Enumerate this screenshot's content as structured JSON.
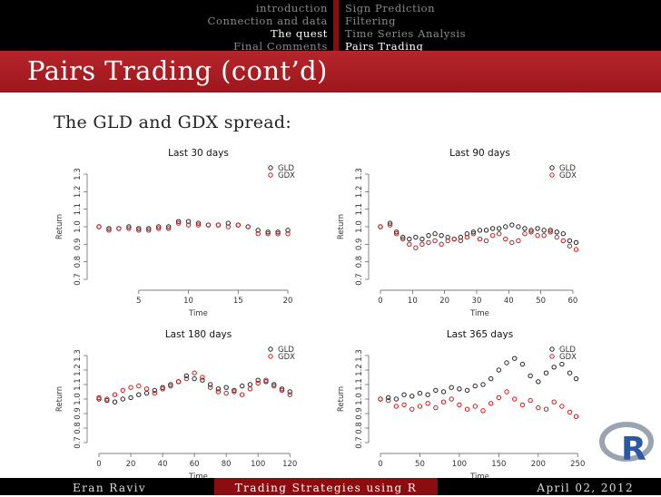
{
  "nav": {
    "sections": [
      "introduction",
      "Connection and data",
      "The quest",
      "Final Comments"
    ],
    "active_section": 2,
    "subsections": [
      "Sign Prediction",
      "Filtering",
      "Time Series Analysis",
      "Pairs Trading"
    ],
    "active_subsection": 3
  },
  "frame_title": "Pairs Trading (cont’d)",
  "subtitle": "The GLD and GDX spread:",
  "footer": {
    "author": "Eran Raviv",
    "talk_title": "Trading Strategies using R",
    "date": "April 02, 2012"
  },
  "logo_text": "R",
  "colors": {
    "nav_bg": "#000000",
    "title_bar": "#a81e23",
    "accent": "#8b0d10",
    "gld": "#222222",
    "gdx": "#d01818"
  },
  "chart_data": [
    {
      "type": "scatter",
      "title": "Last 30 days",
      "xlabel": "Time",
      "ylabel": "Return",
      "xlim": [
        1,
        21
      ],
      "xticks": [
        5,
        10,
        15,
        20
      ],
      "ylim": [
        0.7,
        1.3
      ],
      "yticks": [
        "0.7",
        "0.8",
        "0.9",
        "1.0",
        "1.1",
        "1.2",
        "1.3"
      ],
      "legend_position": "top-right",
      "series": [
        {
          "name": "GLD",
          "color": "#222222",
          "values": [
            1.0,
            0.99,
            0.99,
            1.0,
            0.99,
            0.99,
            1.0,
            1.0,
            1.03,
            1.03,
            1.02,
            1.01,
            1.01,
            1.02,
            1.01,
            1.0,
            0.98,
            0.97,
            0.97,
            0.98
          ]
        },
        {
          "name": "GDX",
          "color": "#d01818",
          "values": [
            1.0,
            0.98,
            0.99,
            0.99,
            0.98,
            0.98,
            0.99,
            0.99,
            1.02,
            1.01,
            1.01,
            1.01,
            1.01,
            1.0,
            1.01,
            1.0,
            0.96,
            0.96,
            0.96,
            0.96
          ]
        }
      ]
    },
    {
      "type": "scatter",
      "title": "Last 90 days",
      "xlabel": "Time",
      "ylabel": "Return",
      "xlim": [
        0,
        62
      ],
      "xticks": [
        0,
        10,
        20,
        30,
        40,
        50,
        60
      ],
      "ylim": [
        0.7,
        1.3
      ],
      "yticks": [
        "0.7",
        "0.8",
        "0.9",
        "1.0",
        "1.1",
        "1.2",
        "1.3"
      ],
      "legend_position": "top-right",
      "series": [
        {
          "name": "GLD",
          "color": "#222222",
          "x": [
            0,
            3,
            5,
            7,
            9,
            11,
            13,
            15,
            17,
            19,
            21,
            23,
            25,
            27,
            29,
            31,
            33,
            35,
            37,
            39,
            41,
            43,
            45,
            47,
            49,
            51,
            53,
            55,
            57,
            59,
            61
          ],
          "values": [
            1.0,
            1.02,
            0.97,
            0.94,
            0.93,
            0.94,
            0.93,
            0.95,
            0.96,
            0.95,
            0.94,
            0.93,
            0.94,
            0.96,
            0.97,
            0.98,
            0.98,
            0.99,
            0.99,
            1.0,
            1.01,
            1.0,
            0.99,
            0.98,
            0.99,
            0.98,
            0.98,
            0.97,
            0.96,
            0.92,
            0.91
          ]
        },
        {
          "name": "GDX",
          "color": "#d01818",
          "x": [
            0,
            3,
            5,
            7,
            9,
            11,
            13,
            15,
            17,
            19,
            21,
            23,
            25,
            27,
            29,
            31,
            33,
            35,
            37,
            39,
            41,
            43,
            45,
            47,
            49,
            51,
            53,
            55,
            57,
            59,
            61
          ],
          "values": [
            1.0,
            1.01,
            0.96,
            0.93,
            0.9,
            0.88,
            0.9,
            0.91,
            0.92,
            0.9,
            0.92,
            0.93,
            0.92,
            0.94,
            0.96,
            0.93,
            0.92,
            0.95,
            0.96,
            0.93,
            0.91,
            0.92,
            0.96,
            0.97,
            0.95,
            0.95,
            0.97,
            0.94,
            0.92,
            0.89,
            0.87
          ]
        }
      ]
    },
    {
      "type": "scatter",
      "title": "Last 180 days",
      "xlabel": "Time",
      "ylabel": "Return",
      "xlim": [
        0,
        125
      ],
      "xticks": [
        0,
        20,
        40,
        60,
        80,
        100,
        120
      ],
      "ylim": [
        0.7,
        1.3
      ],
      "yticks": [
        "0.7",
        "0.8",
        "0.9",
        "1.0",
        "1.1",
        "1.2",
        "1.3"
      ],
      "legend_position": "top-right",
      "series": [
        {
          "name": "GLD",
          "color": "#222222",
          "x": [
            0,
            5,
            10,
            15,
            20,
            25,
            30,
            35,
            40,
            45,
            50,
            55,
            60,
            65,
            70,
            75,
            80,
            85,
            90,
            95,
            100,
            105,
            110,
            115,
            120
          ],
          "values": [
            1.0,
            0.99,
            0.98,
            1.0,
            1.01,
            1.03,
            1.04,
            1.06,
            1.08,
            1.1,
            1.12,
            1.16,
            1.14,
            1.13,
            1.1,
            1.07,
            1.08,
            1.06,
            1.09,
            1.1,
            1.13,
            1.12,
            1.1,
            1.07,
            1.05
          ]
        },
        {
          "name": "GDX",
          "color": "#d01818",
          "x": [
            0,
            5,
            10,
            15,
            20,
            25,
            30,
            35,
            40,
            45,
            50,
            55,
            60,
            65,
            70,
            75,
            80,
            85,
            90,
            95,
            100,
            105,
            110,
            115,
            120
          ],
          "values": [
            1.01,
            1.0,
            1.03,
            1.06,
            1.08,
            1.09,
            1.07,
            1.04,
            1.07,
            1.09,
            1.12,
            1.14,
            1.18,
            1.15,
            1.08,
            1.05,
            1.04,
            1.05,
            1.03,
            1.07,
            1.11,
            1.13,
            1.09,
            1.06,
            1.03
          ]
        }
      ]
    },
    {
      "type": "scatter",
      "title": "Last 365 days",
      "xlabel": "Time",
      "ylabel": "Return",
      "xlim": [
        0,
        252
      ],
      "xticks": [
        0,
        50,
        100,
        150,
        200,
        250
      ],
      "ylim": [
        0.7,
        1.3
      ],
      "yticks": [
        "0.7",
        "0.8",
        "0.9",
        "1.0",
        "1.1",
        "1.2",
        "1.3"
      ],
      "legend_position": "top-right",
      "series": [
        {
          "name": "GLD",
          "color": "#222222",
          "x": [
            0,
            10,
            20,
            30,
            40,
            50,
            60,
            70,
            80,
            90,
            100,
            110,
            120,
            130,
            140,
            150,
            160,
            170,
            180,
            190,
            200,
            210,
            220,
            230,
            240,
            248
          ],
          "values": [
            1.0,
            1.01,
            1.0,
            1.03,
            1.02,
            1.04,
            1.03,
            1.06,
            1.05,
            1.08,
            1.07,
            1.06,
            1.09,
            1.1,
            1.14,
            1.2,
            1.25,
            1.28,
            1.24,
            1.16,
            1.12,
            1.18,
            1.22,
            1.24,
            1.18,
            1.14
          ]
        },
        {
          "name": "GDX",
          "color": "#d01818",
          "x": [
            0,
            10,
            20,
            30,
            40,
            50,
            60,
            70,
            80,
            90,
            100,
            110,
            120,
            130,
            140,
            150,
            160,
            170,
            180,
            190,
            200,
            210,
            220,
            230,
            240,
            248
          ],
          "values": [
            1.0,
            0.99,
            0.95,
            0.96,
            0.93,
            0.95,
            0.97,
            0.94,
            0.98,
            1.0,
            0.96,
            0.93,
            0.95,
            0.92,
            0.97,
            1.01,
            1.05,
            1.0,
            0.96,
            0.99,
            0.94,
            0.93,
            0.98,
            0.95,
            0.91,
            0.88
          ]
        }
      ]
    }
  ]
}
